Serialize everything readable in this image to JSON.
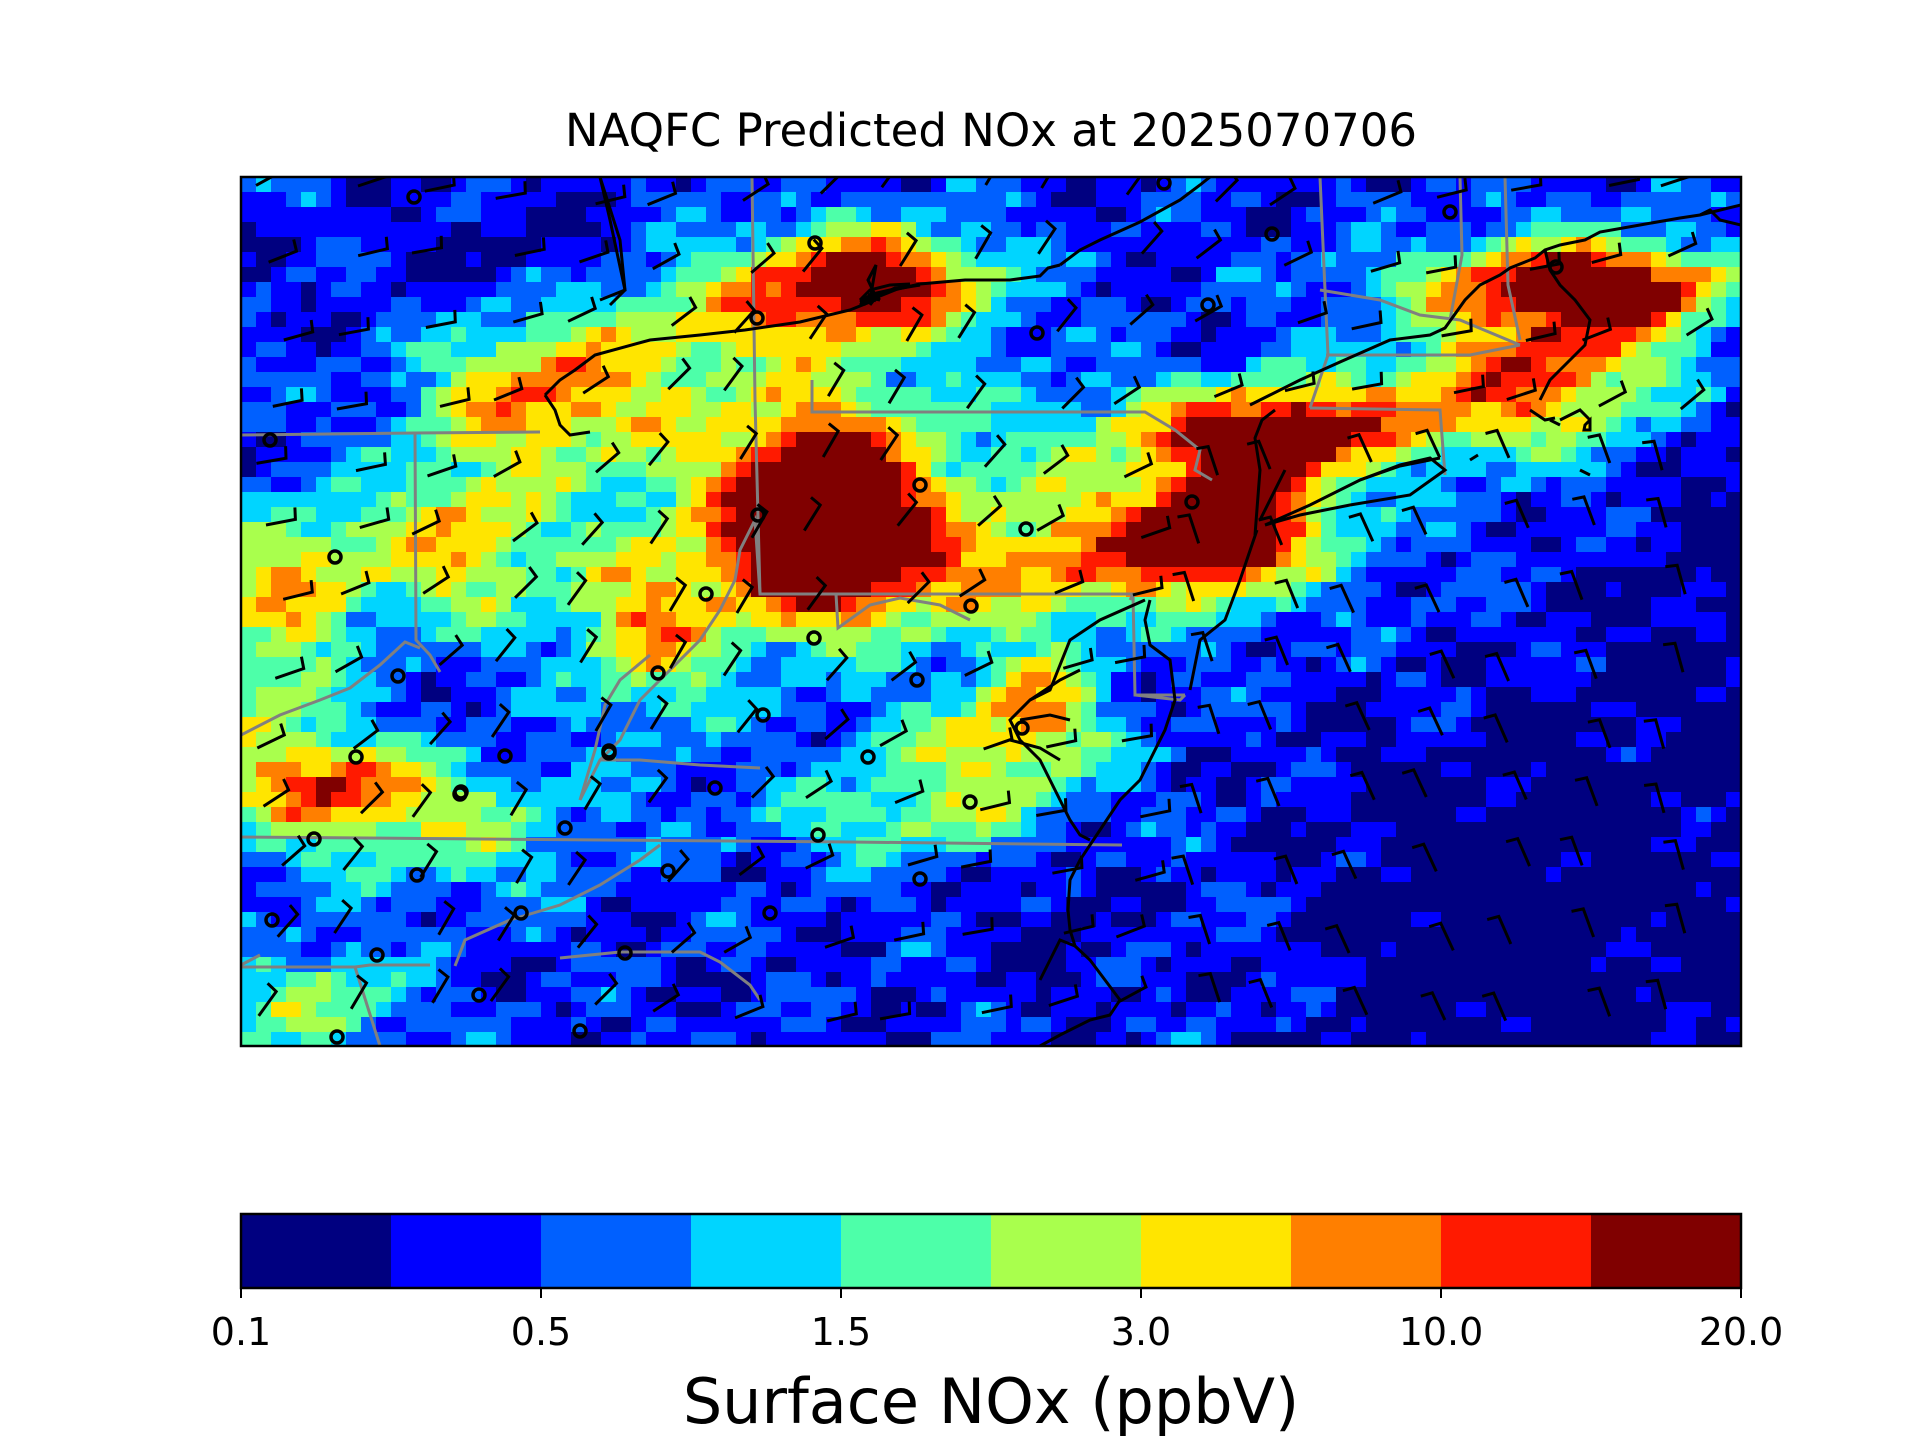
{
  "title": "NAQFC Predicted NOx at 2025070706",
  "colorbar": {
    "label": "Surface NOx (ppbV)",
    "tick_labels": [
      "0.1",
      "0.5",
      "1.5",
      "3.0",
      "10.0",
      "20.0"
    ],
    "colors": [
      "#000080",
      "#0000ff",
      "#0060ff",
      "#00d5ff",
      "#4dffa9",
      "#a9ff4d",
      "#ffe500",
      "#ff7f00",
      "#ff1a00",
      "#800000"
    ]
  },
  "map": {
    "field": "Surface NOx",
    "features": [
      "state-borders",
      "coastlines",
      "great-lakes-shoreline",
      "wind-barbs",
      "monitor-sites"
    ],
    "colors": {
      "state_border": "#808080",
      "coastline": "#000000",
      "barb": "#000000",
      "site": "#000000"
    }
  }
}
